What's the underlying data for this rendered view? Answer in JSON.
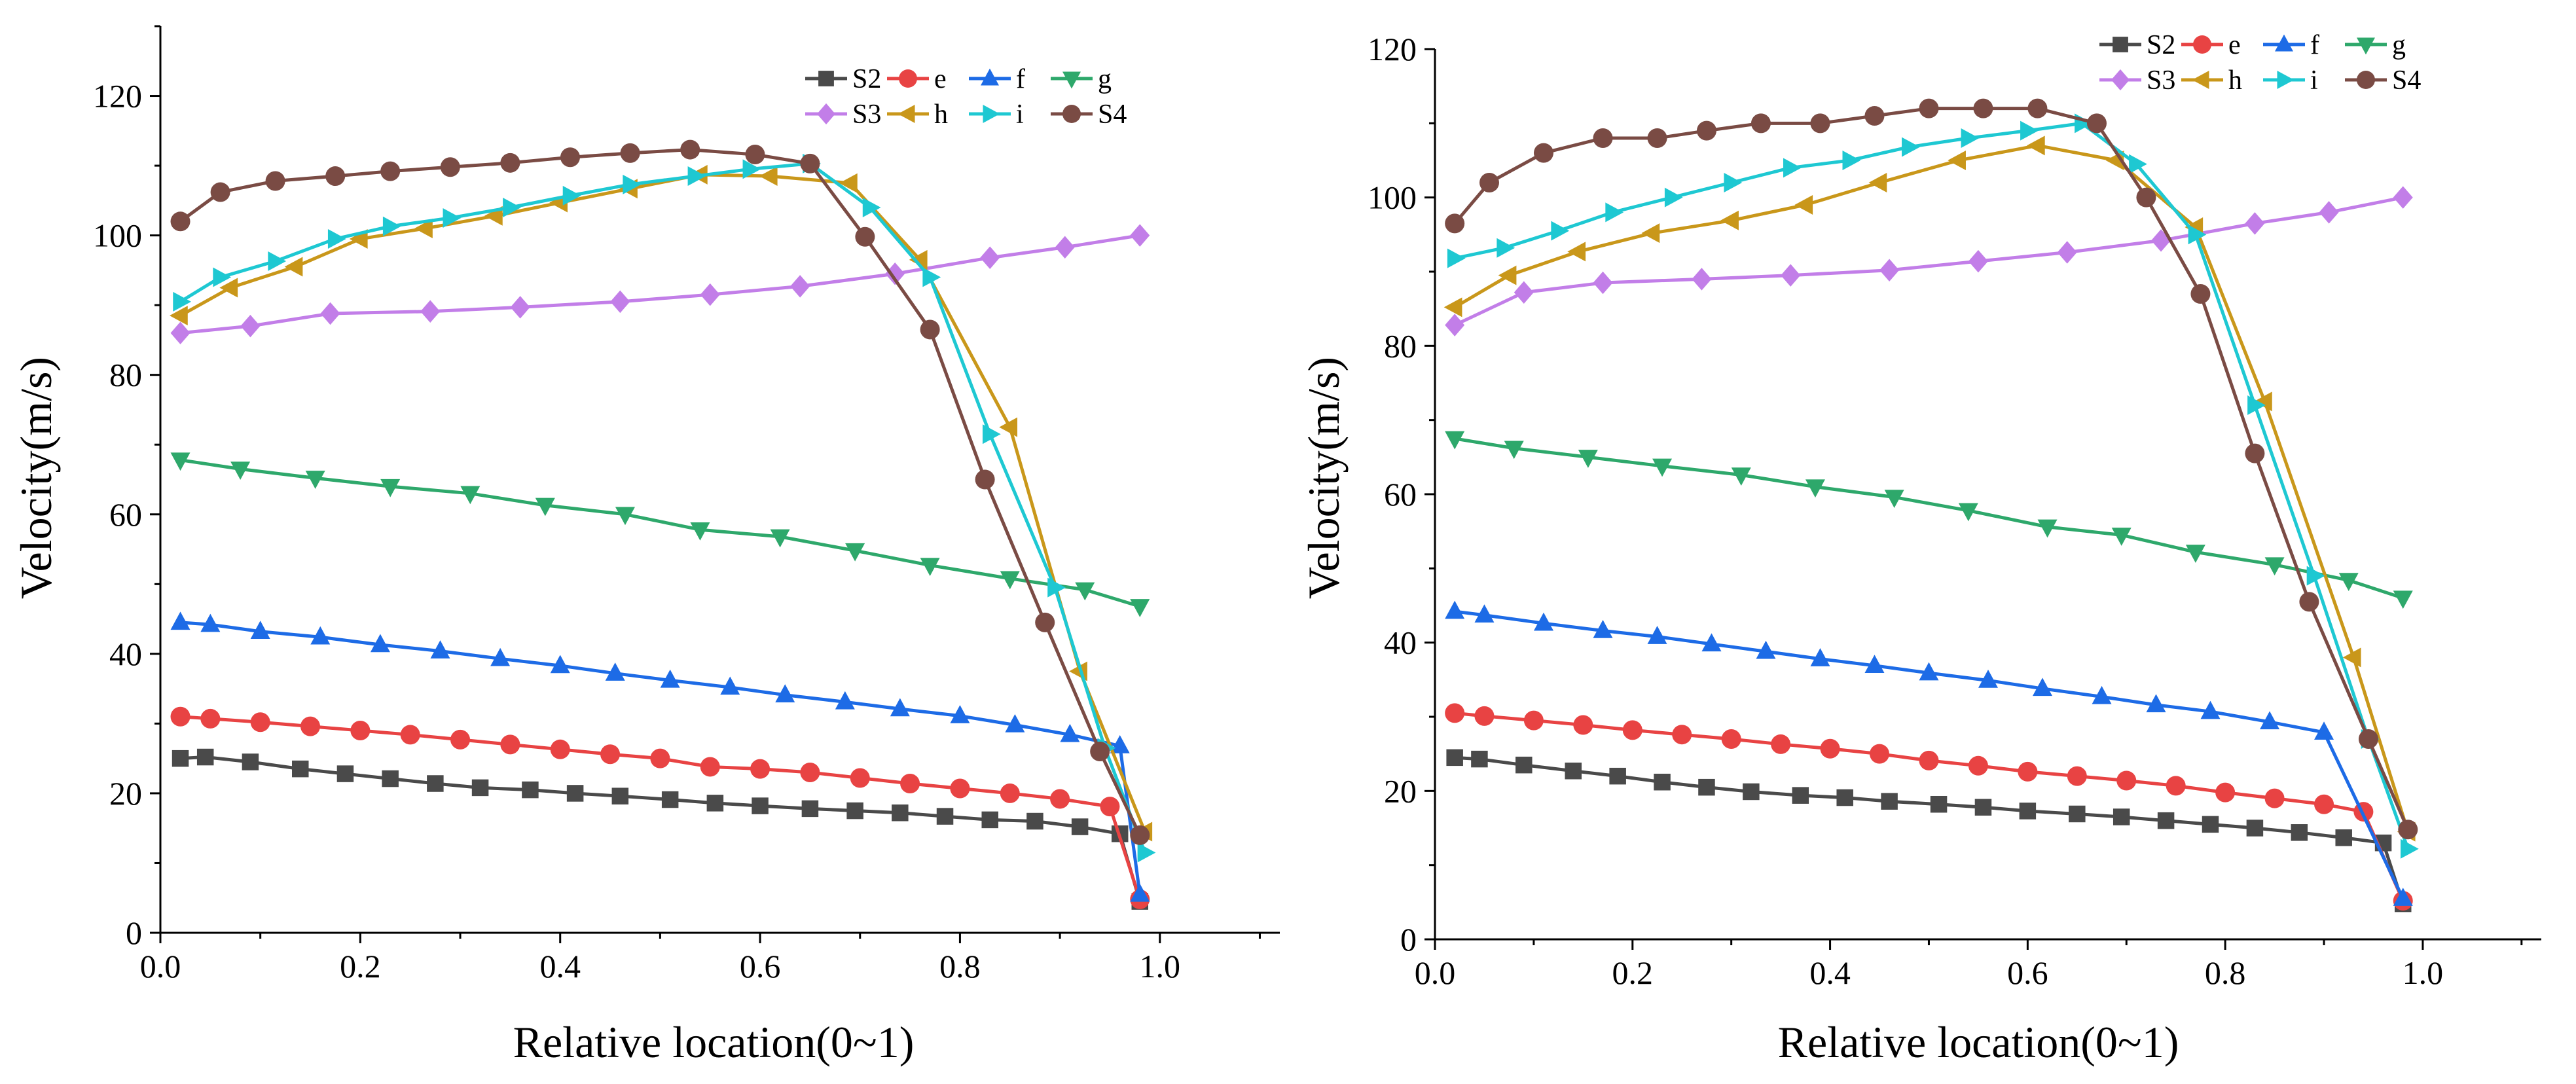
{
  "chart_data": [
    {
      "type": "line",
      "panel": "left",
      "title": "",
      "xlabel": "Relative location(0~1)",
      "ylabel": "Velocity(m/s)",
      "xlim": [
        0,
        1.12
      ],
      "ylim": [
        0,
        130
      ],
      "xticks": [
        0.0,
        0.2,
        0.4,
        0.6,
        0.8,
        1.0
      ],
      "xtick_labels": [
        "0.0",
        "0.2",
        "0.4",
        "0.6",
        "0.8",
        "1.0"
      ],
      "yticks": [
        0,
        20,
        40,
        60,
        80,
        100,
        120
      ],
      "ytick_labels": [
        "0",
        "20",
        "40",
        "60",
        "80",
        "100",
        "120"
      ],
      "legend_position": "top-right",
      "series": [
        {
          "name": "S2",
          "color": "#4a4a4a",
          "marker": "square",
          "x": [
            0.02,
            0.045,
            0.09,
            0.14,
            0.185,
            0.23,
            0.275,
            0.32,
            0.37,
            0.415,
            0.46,
            0.51,
            0.555,
            0.6,
            0.65,
            0.695,
            0.74,
            0.785,
            0.83,
            0.875,
            0.92,
            0.96,
            0.98
          ],
          "y": [
            25,
            25.2,
            24.5,
            23.5,
            22.8,
            22.1,
            21.4,
            20.8,
            20.5,
            20,
            19.6,
            19.1,
            18.6,
            18.2,
            17.8,
            17.5,
            17.2,
            16.7,
            16.2,
            16,
            15.2,
            14.2,
            4.5
          ]
        },
        {
          "name": "e",
          "color": "#e84343",
          "marker": "circle",
          "x": [
            0.02,
            0.05,
            0.1,
            0.15,
            0.2,
            0.25,
            0.3,
            0.35,
            0.4,
            0.45,
            0.5,
            0.55,
            0.6,
            0.65,
            0.7,
            0.75,
            0.8,
            0.85,
            0.9,
            0.95,
            0.98
          ],
          "y": [
            31,
            30.7,
            30.2,
            29.6,
            29,
            28.4,
            27.7,
            27,
            26.3,
            25.6,
            25,
            23.8,
            23.5,
            23,
            22.2,
            21.4,
            20.7,
            20,
            19.2,
            18.1,
            4.8
          ]
        },
        {
          "name": "f",
          "color": "#1d6be6",
          "marker": "triangle-up",
          "x": [
            0.02,
            0.05,
            0.1,
            0.16,
            0.22,
            0.28,
            0.34,
            0.4,
            0.455,
            0.51,
            0.57,
            0.625,
            0.685,
            0.74,
            0.8,
            0.855,
            0.91,
            0.96,
            0.98
          ],
          "y": [
            44.5,
            44.2,
            43.2,
            42.4,
            41.3,
            40.4,
            39.3,
            38.3,
            37.2,
            36.2,
            35.2,
            34.1,
            33.1,
            32.1,
            31.1,
            29.8,
            28.4,
            26.8,
            5.5
          ]
        },
        {
          "name": "g",
          "color": "#2ea86b",
          "marker": "triangle-down",
          "x": [
            0.02,
            0.08,
            0.155,
            0.23,
            0.31,
            0.385,
            0.465,
            0.54,
            0.62,
            0.695,
            0.77,
            0.85,
            0.925,
            0.98
          ],
          "y": [
            67.8,
            66.5,
            65.2,
            64,
            63,
            61.3,
            60,
            57.8,
            56.8,
            54.8,
            52.7,
            50.8,
            49.2,
            46.8
          ]
        },
        {
          "name": "S3",
          "color": "#c27ee8",
          "marker": "diamond",
          "x": [
            0.02,
            0.09,
            0.17,
            0.27,
            0.36,
            0.46,
            0.55,
            0.64,
            0.735,
            0.83,
            0.905,
            0.98
          ],
          "y": [
            86,
            87,
            88.8,
            89.1,
            89.7,
            90.5,
            91.5,
            92.7,
            94.5,
            96.8,
            98.3,
            100
          ]
        },
        {
          "name": "h",
          "color": "#c9971a",
          "marker": "triangle-left",
          "x": [
            0.02,
            0.07,
            0.135,
            0.2,
            0.265,
            0.335,
            0.4,
            0.47,
            0.54,
            0.61,
            0.69,
            0.76,
            0.85,
            0.92,
            0.985
          ],
          "y": [
            88.5,
            92.5,
            95.5,
            99.5,
            101,
            102.8,
            104.7,
            106.7,
            108.7,
            108.5,
            107.5,
            96.5,
            72.5,
            37.5,
            14.5
          ]
        },
        {
          "name": "i",
          "color": "#1ec8d2",
          "marker": "triangle-right",
          "x": [
            0.02,
            0.06,
            0.115,
            0.175,
            0.23,
            0.29,
            0.35,
            0.41,
            0.47,
            0.535,
            0.59,
            0.65,
            0.71,
            0.77,
            0.83,
            0.895,
            0.945,
            0.985
          ],
          "y": [
            90.5,
            94,
            96.3,
            99.5,
            101.3,
            102.5,
            104,
            105.7,
            107.3,
            108.5,
            109.5,
            110.3,
            104,
            94,
            71.5,
            49.5,
            26.5,
            11.5
          ]
        },
        {
          "name": "S4",
          "color": "#7a4b44",
          "marker": "circle",
          "x": [
            0.02,
            0.06,
            0.115,
            0.175,
            0.23,
            0.29,
            0.35,
            0.41,
            0.47,
            0.53,
            0.595,
            0.65,
            0.705,
            0.77,
            0.825,
            0.885,
            0.94,
            0.98
          ],
          "y": [
            102,
            106.2,
            107.8,
            108.5,
            109.2,
            109.8,
            110.4,
            111.2,
            111.8,
            112.3,
            111.6,
            110.3,
            99.8,
            86.5,
            65,
            44.5,
            26,
            14
          ]
        }
      ]
    },
    {
      "type": "line",
      "panel": "right",
      "title": "",
      "xlabel": "Relative location(0~1)",
      "ylabel": "Velocity(m/s)",
      "xlim": [
        0,
        1.12
      ],
      "ylim": [
        0,
        120
      ],
      "xticks": [
        0.0,
        0.2,
        0.4,
        0.6,
        0.8,
        1.0
      ],
      "xtick_labels": [
        "0.0",
        "0.2",
        "0.4",
        "0.6",
        "0.8",
        "1.0"
      ],
      "yticks": [
        0,
        20,
        40,
        60,
        80,
        100,
        120
      ],
      "ytick_labels": [
        "0",
        "20",
        "40",
        "60",
        "80",
        "100",
        "120"
      ],
      "legend_position": "top-right",
      "series": [
        {
          "name": "S2",
          "color": "#4a4a4a",
          "marker": "square",
          "x": [
            0.02,
            0.045,
            0.09,
            0.14,
            0.185,
            0.23,
            0.275,
            0.32,
            0.37,
            0.415,
            0.46,
            0.51,
            0.555,
            0.6,
            0.65,
            0.695,
            0.74,
            0.785,
            0.83,
            0.875,
            0.92,
            0.96,
            0.98
          ],
          "y": [
            24.5,
            24.3,
            23.5,
            22.7,
            22,
            21.2,
            20.5,
            19.9,
            19.4,
            19.1,
            18.6,
            18.2,
            17.8,
            17.3,
            16.9,
            16.5,
            16,
            15.5,
            15,
            14.4,
            13.7,
            13,
            4.8
          ]
        },
        {
          "name": "e",
          "color": "#e84343",
          "marker": "circle",
          "x": [
            0.02,
            0.05,
            0.1,
            0.15,
            0.2,
            0.25,
            0.3,
            0.35,
            0.4,
            0.45,
            0.5,
            0.55,
            0.6,
            0.65,
            0.7,
            0.75,
            0.8,
            0.85,
            0.9,
            0.94,
            0.98
          ],
          "y": [
            30.5,
            30.1,
            29.5,
            28.9,
            28.2,
            27.6,
            27,
            26.3,
            25.7,
            25,
            24.1,
            23.4,
            22.6,
            22,
            21.4,
            20.7,
            19.8,
            19,
            18.2,
            17.2,
            5.2
          ]
        },
        {
          "name": "f",
          "color": "#1d6be6",
          "marker": "triangle-up",
          "x": [
            0.02,
            0.05,
            0.11,
            0.17,
            0.225,
            0.28,
            0.335,
            0.39,
            0.445,
            0.5,
            0.56,
            0.615,
            0.675,
            0.73,
            0.785,
            0.845,
            0.9,
            0.98
          ],
          "y": [
            44.2,
            43.7,
            42.6,
            41.6,
            40.8,
            39.8,
            38.8,
            37.8,
            36.9,
            35.9,
            34.9,
            33.8,
            32.7,
            31.6,
            30.7,
            29.3,
            27.9,
            5.5
          ]
        },
        {
          "name": "g",
          "color": "#2ea86b",
          "marker": "triangle-down",
          "x": [
            0.02,
            0.08,
            0.155,
            0.23,
            0.31,
            0.385,
            0.465,
            0.54,
            0.62,
            0.695,
            0.77,
            0.85,
            0.925,
            0.98
          ],
          "y": [
            67.5,
            66.2,
            65,
            63.8,
            62.6,
            61,
            59.6,
            57.8,
            55.6,
            54.5,
            52.2,
            50.5,
            48.4,
            46
          ]
        },
        {
          "name": "S3",
          "color": "#c27ee8",
          "marker": "diamond",
          "x": [
            0.02,
            0.09,
            0.17,
            0.27,
            0.36,
            0.46,
            0.55,
            0.64,
            0.735,
            0.83,
            0.905,
            0.98
          ],
          "y": [
            82.8,
            87.2,
            88.5,
            89,
            89.5,
            90.2,
            91.4,
            92.6,
            94.2,
            96.5,
            98,
            100
          ]
        },
        {
          "name": "h",
          "color": "#c9971a",
          "marker": "triangle-left",
          "x": [
            0.02,
            0.075,
            0.145,
            0.22,
            0.3,
            0.375,
            0.45,
            0.53,
            0.61,
            0.69,
            0.77,
            0.84,
            0.93,
            0.985
          ],
          "y": [
            85.2,
            89.5,
            92.7,
            95.2,
            96.9,
            99,
            102,
            105,
            107,
            105,
            96,
            72.5,
            38,
            14.5
          ]
        },
        {
          "name": "i",
          "color": "#1ec8d2",
          "marker": "triangle-right",
          "x": [
            0.02,
            0.07,
            0.125,
            0.18,
            0.24,
            0.3,
            0.36,
            0.42,
            0.48,
            0.54,
            0.6,
            0.655,
            0.71,
            0.77,
            0.83,
            0.89,
            0.945,
            0.985
          ],
          "y": [
            91.8,
            93.2,
            95.5,
            98,
            100,
            102,
            104,
            105,
            106.8,
            108,
            109,
            110,
            104.5,
            95,
            72,
            49,
            27,
            12.2
          ]
        },
        {
          "name": "S4",
          "color": "#7a4b44",
          "marker": "circle",
          "x": [
            0.02,
            0.055,
            0.11,
            0.17,
            0.225,
            0.275,
            0.33,
            0.39,
            0.445,
            0.5,
            0.555,
            0.61,
            0.67,
            0.72,
            0.775,
            0.83,
            0.885,
            0.945,
            0.985
          ],
          "y": [
            96.5,
            102,
            106,
            108,
            108,
            109,
            110,
            110,
            111,
            112,
            112,
            112,
            110,
            100,
            87,
            65.5,
            45.5,
            27,
            14.8
          ]
        }
      ]
    }
  ]
}
